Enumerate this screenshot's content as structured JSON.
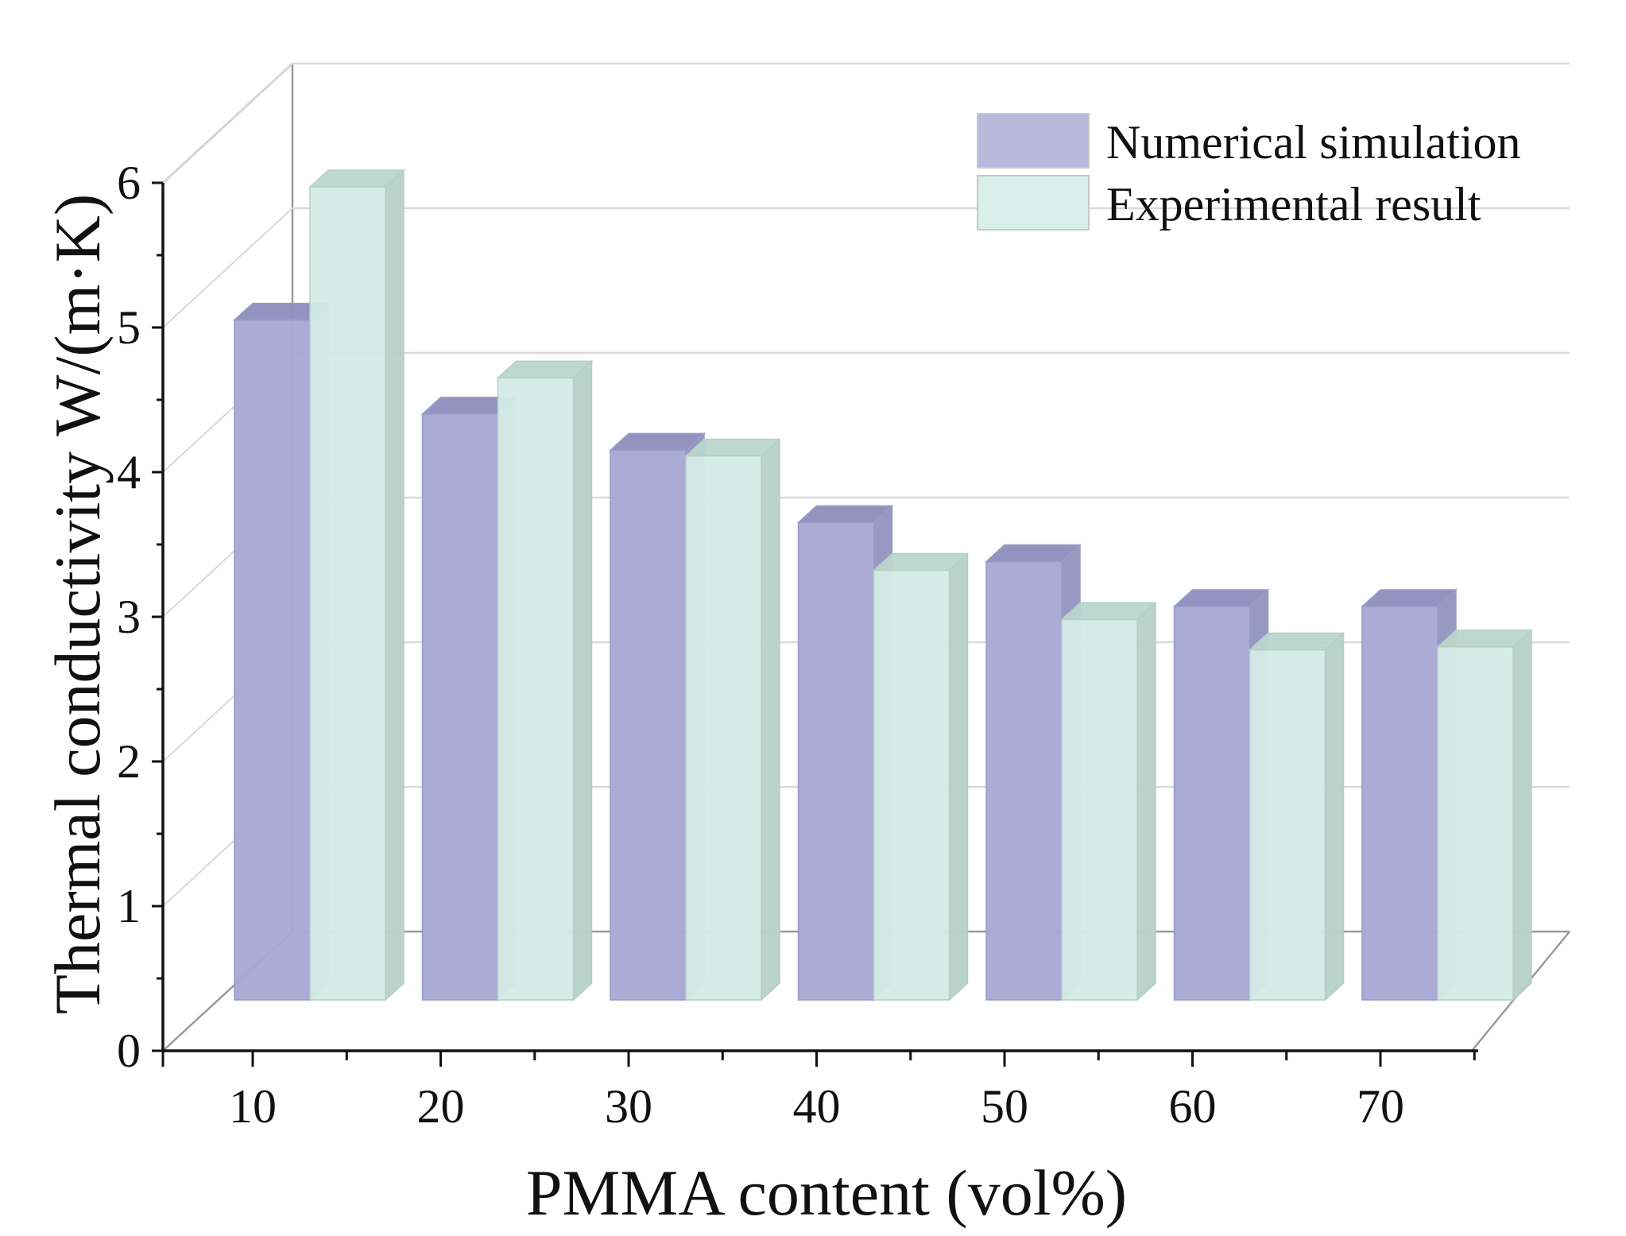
{
  "chart_data": {
    "type": "bar",
    "style": "3d",
    "xlabel": "PMMA content  (vol%)",
    "ylabel": "Thermal conductivity W/(m·K)",
    "categories": [
      "10",
      "20",
      "30",
      "40",
      "50",
      "60",
      "70"
    ],
    "series": [
      {
        "name": "Numerical simulation",
        "color": "#9b9fcc",
        "values": [
          4.7,
          4.05,
          3.8,
          3.3,
          3.03,
          2.72,
          2.72
        ]
      },
      {
        "name": "Experimental result",
        "color": "#cfe8e0",
        "values": [
          5.62,
          4.3,
          3.76,
          2.97,
          2.63,
          2.42,
          2.44
        ]
      }
    ],
    "yticks": [
      "0",
      "1",
      "2",
      "3",
      "4",
      "5",
      "6"
    ],
    "ylim": [
      0,
      6
    ],
    "grid": true,
    "legend": "top-right"
  }
}
